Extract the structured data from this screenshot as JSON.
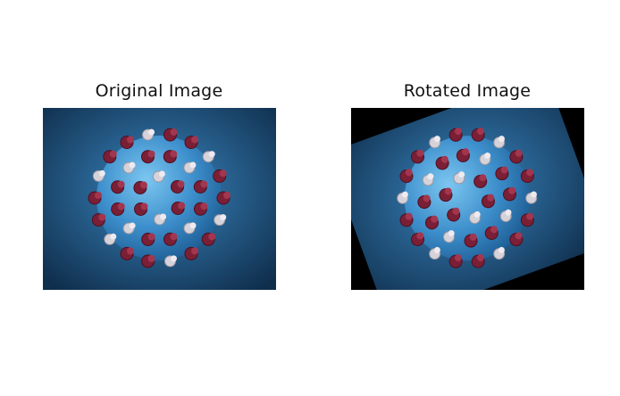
{
  "panels": {
    "original": {
      "title": "Original Image"
    },
    "rotated": {
      "title": "Rotated Image",
      "rotation_degrees": -20
    }
  },
  "image_subject": "virus-particle-icon",
  "colors": {
    "background_light": "#3a86c0",
    "background_dark": "#0f2e4c",
    "sphere_light": "#7cc6f0",
    "sphere_dark": "#1d5c93",
    "spike_red": "#7a1f35",
    "spike_light": "#d6d2da",
    "rotated_fill": "#000000"
  }
}
